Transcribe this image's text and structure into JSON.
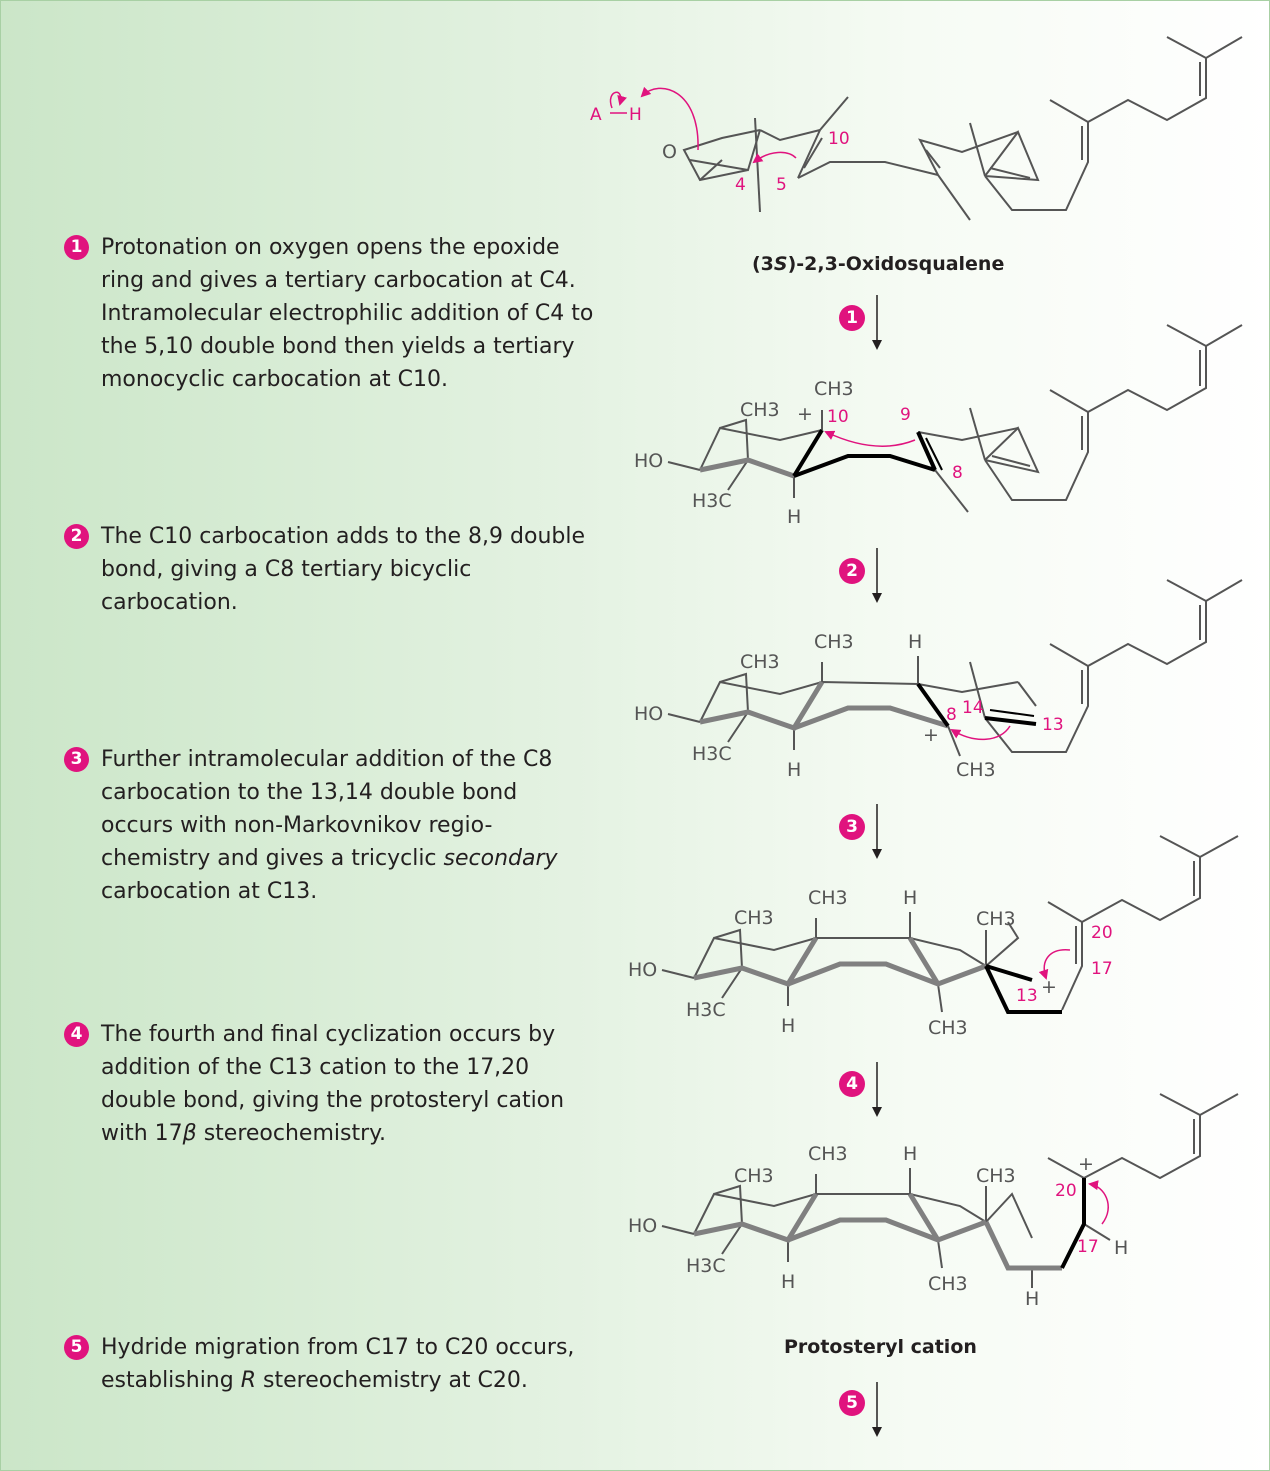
{
  "steps": [
    {
      "badge": "1",
      "text": "Protonation on oxygen opens the epoxide ring and gives a tertiary carbocation at C4. Intramolecular electrophilic addition of C4 to the 5,10 double bond then yields a tertiary monocyclic carbocation at C10."
    },
    {
      "badge": "2",
      "text": "The C10 carbocation adds to the 8,9 double bond, giving a C8 tertiary bicyclic carbocation."
    },
    {
      "badge": "3",
      "text_before": "Further intramolecular addition of the C8 carbocation to the 13,14 double bond occurs with non-Markovnikov regio-chemistry and gives a tricyclic ",
      "text_italic": "secondary",
      "text_after": " carbocation at C13."
    },
    {
      "badge": "4",
      "text_before": "The fourth and final cyclization occurs by addition of the C13 cation to the 17,20 double bond, giving the protosteryl cation with 17",
      "text_italic": "β",
      "text_after": " stereochemistry."
    },
    {
      "badge": "5",
      "text_before": "Hydride migration from C17 to C20 occurs, establishing ",
      "text_italic": "R",
      "text_after": " stereochemistry at C20."
    }
  ],
  "captions": {
    "start_prefix": "(3",
    "start_italic": "S",
    "start_suffix": ")-2,3-Oxidosqualene",
    "end": "Protosteryl cation"
  },
  "arrow_badges": [
    "1",
    "2",
    "3",
    "4",
    "5"
  ],
  "structures": {
    "s1": {
      "a": "A",
      "h": "H",
      "o": "O",
      "c4": "4",
      "c5": "5",
      "c10": "10"
    },
    "s2": {
      "ch3_top": "CH3",
      "ch3_axial": "CH3",
      "plus": "+",
      "c10": "10",
      "c9": "9",
      "c8": "8",
      "ho": "HO",
      "h3c": "H3C",
      "h": "H"
    },
    "s3": {
      "ch3_a": "CH3",
      "ch3_b": "CH3",
      "h_top": "H",
      "c8": "8",
      "c14": "14",
      "c13": "13",
      "plus": "+",
      "ch3_c": "CH3",
      "ho": "HO",
      "h3c": "H3C",
      "h": "H"
    },
    "s4": {
      "ch3_a": "CH3",
      "ch3_b": "CH3",
      "h_top": "H",
      "ch3_c": "CH3",
      "c20": "20",
      "c17": "17",
      "c13": "13",
      "plus": "+",
      "ch3_d": "CH3",
      "ho": "HO",
      "h3c": "H3C",
      "h": "H"
    },
    "s5": {
      "ch3_a": "CH3",
      "ch3_b": "CH3",
      "h_top": "H",
      "ch3_c": "CH3",
      "plus": "+",
      "c20": "20",
      "c17": "17",
      "h_right": "H",
      "ch3_d": "CH3",
      "ho": "HO",
      "h3c": "H3C",
      "h": "H",
      "h_bottom": "H"
    }
  },
  "colors": {
    "accent": "#e0137e",
    "bond": "#555555",
    "bold_bond": "#808080",
    "dark_bond": "#000000",
    "text": "#231f20"
  }
}
